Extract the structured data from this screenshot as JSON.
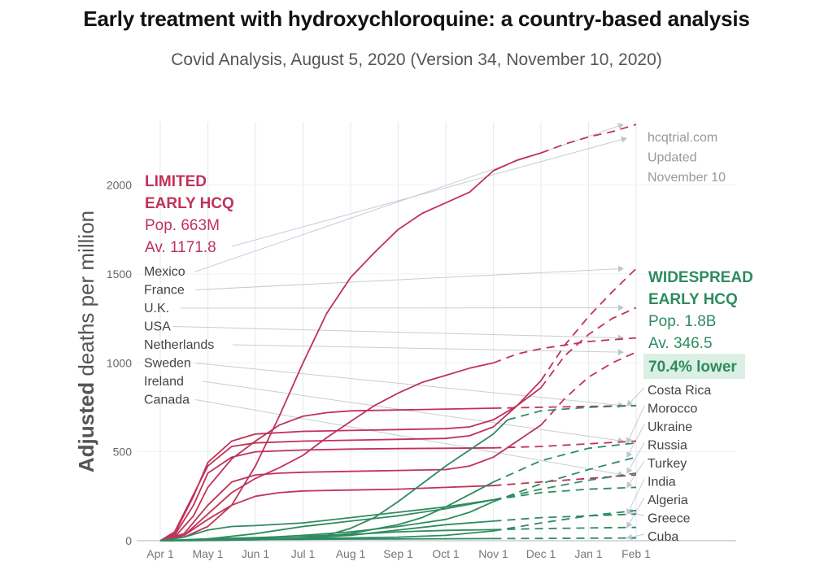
{
  "title": "Early treatment with hydroxychloroquine: a country-based analysis",
  "subtitle": "Covid Analysis, August 5, 2020 (Version 34, November 10, 2020)",
  "chart_data": {
    "type": "line",
    "ylabel_bold": "Adjusted",
    "ylabel_rest": " deaths per million",
    "xlabel": "",
    "x_ticks": [
      "Apr 1",
      "May 1",
      "Jun 1",
      "Jul 1",
      "Aug 1",
      "Sep 1",
      "Oct 1",
      "Nov 1",
      "Dec 1",
      "Jan 1",
      "Feb 1"
    ],
    "y_ticks": [
      0,
      500,
      1000,
      1500,
      2000
    ],
    "ylim": [
      0,
      2400
    ],
    "grid": true,
    "source_note": [
      "hcqtrial.com",
      "Updated",
      "November 10"
    ],
    "colors": {
      "limited": "#c0325a",
      "widespread": "#2e8b60",
      "annotation_line": "#c7ccd6"
    },
    "groups": {
      "limited": {
        "lines": [
          "LIMITED",
          "EARLY HCQ",
          "Pop. 663M",
          "Av. 1171.8"
        ]
      },
      "widespread": {
        "lines": [
          "WIDESPREAD",
          "EARLY HCQ",
          "Pop. 1.8B",
          "Av. 346.5"
        ],
        "highlight": "70.4% lower"
      }
    },
    "limited_countries": [
      "Mexico",
      "France",
      "U.K.",
      "USA",
      "Netherlands",
      "Sweden",
      "Ireland",
      "Canada"
    ],
    "widespread_countries": [
      "Costa Rica",
      "Morocco",
      "Ukraine",
      "Russia",
      "Turkey",
      "India",
      "Algeria",
      "Greece",
      "Cuba"
    ],
    "series": [
      {
        "name": "Mexico",
        "group": "limited",
        "points": [
          [
            0,
            0
          ],
          [
            0.5,
            20
          ],
          [
            1,
            80
          ],
          [
            1.5,
            200
          ],
          [
            2,
            420
          ],
          [
            2.5,
            700
          ],
          [
            3,
            1000
          ],
          [
            3.5,
            1280
          ],
          [
            4,
            1480
          ],
          [
            4.5,
            1620
          ],
          [
            5,
            1750
          ],
          [
            5.5,
            1840
          ],
          [
            6,
            1900
          ],
          [
            6.5,
            1960
          ],
          [
            7,
            2080
          ],
          [
            7.5,
            2140
          ],
          [
            8,
            2180
          ]
        ],
        "projection": [
          [
            8,
            2180
          ],
          [
            8.5,
            2230
          ],
          [
            9,
            2270
          ],
          [
            9.5,
            2300
          ],
          [
            10,
            2340
          ]
        ]
      },
      {
        "name": "France",
        "group": "limited",
        "points": [
          [
            0,
            0
          ],
          [
            0.3,
            50
          ],
          [
            0.7,
            260
          ],
          [
            1,
            420
          ],
          [
            1.5,
            530
          ],
          [
            2,
            550
          ],
          [
            3,
            560
          ],
          [
            4,
            565
          ],
          [
            5,
            570
          ],
          [
            6,
            575
          ],
          [
            6.5,
            590
          ],
          [
            7,
            640
          ],
          [
            7.5,
            760
          ],
          [
            8,
            900
          ]
        ],
        "projection": [
          [
            8,
            900
          ],
          [
            8.5,
            1100
          ],
          [
            9,
            1260
          ],
          [
            9.5,
            1400
          ],
          [
            10,
            1530
          ]
        ]
      },
      {
        "name": "U.K.",
        "group": "limited",
        "points": [
          [
            0,
            0
          ],
          [
            0.3,
            40
          ],
          [
            0.7,
            250
          ],
          [
            1,
            440
          ],
          [
            1.5,
            560
          ],
          [
            2,
            600
          ],
          [
            3,
            615
          ],
          [
            4,
            620
          ],
          [
            5,
            625
          ],
          [
            6,
            630
          ],
          [
            6.5,
            640
          ],
          [
            7,
            680
          ],
          [
            7.5,
            760
          ],
          [
            8,
            860
          ]
        ],
        "projection": [
          [
            8,
            860
          ],
          [
            8.5,
            1040
          ],
          [
            9,
            1160
          ],
          [
            9.5,
            1250
          ],
          [
            10,
            1310
          ]
        ]
      },
      {
        "name": "USA",
        "group": "limited",
        "points": [
          [
            0,
            0
          ],
          [
            0.5,
            30
          ],
          [
            1,
            150
          ],
          [
            1.5,
            270
          ],
          [
            2,
            350
          ],
          [
            2.5,
            410
          ],
          [
            3,
            480
          ],
          [
            3.5,
            580
          ],
          [
            4,
            670
          ],
          [
            4.5,
            760
          ],
          [
            5,
            830
          ],
          [
            5.5,
            890
          ],
          [
            6,
            930
          ],
          [
            6.5,
            970
          ],
          [
            7,
            1000
          ]
        ],
        "projection": [
          [
            7,
            1000
          ],
          [
            7.5,
            1050
          ],
          [
            8,
            1080
          ],
          [
            8.5,
            1100
          ],
          [
            9,
            1120
          ],
          [
            9.5,
            1130
          ],
          [
            10,
            1140
          ]
        ]
      },
      {
        "name": "Netherlands",
        "group": "limited",
        "points": [
          [
            0,
            0
          ],
          [
            0.5,
            40
          ],
          [
            1,
            200
          ],
          [
            1.5,
            330
          ],
          [
            2,
            370
          ],
          [
            2.5,
            380
          ],
          [
            3,
            385
          ],
          [
            4,
            390
          ],
          [
            5,
            395
          ],
          [
            6,
            400
          ],
          [
            6.5,
            420
          ],
          [
            7,
            470
          ],
          [
            7.5,
            560
          ],
          [
            8,
            650
          ]
        ],
        "projection": [
          [
            8,
            650
          ],
          [
            8.5,
            800
          ],
          [
            9,
            920
          ],
          [
            9.5,
            1000
          ],
          [
            10,
            1060
          ]
        ]
      },
      {
        "name": "Sweden",
        "group": "limited",
        "points": [
          [
            0,
            0
          ],
          [
            0.3,
            20
          ],
          [
            0.7,
            140
          ],
          [
            1,
            300
          ],
          [
            1.5,
            460
          ],
          [
            2,
            560
          ],
          [
            2.5,
            650
          ],
          [
            3,
            700
          ],
          [
            3.5,
            720
          ],
          [
            4,
            730
          ],
          [
            5,
            735
          ],
          [
            6,
            740
          ],
          [
            7,
            745
          ]
        ],
        "projection": [
          [
            7,
            745
          ],
          [
            8,
            750
          ],
          [
            9,
            755
          ],
          [
            10,
            760
          ]
        ]
      },
      {
        "name": "Ireland",
        "group": "limited",
        "points": [
          [
            0,
            0
          ],
          [
            0.3,
            30
          ],
          [
            0.7,
            200
          ],
          [
            1,
            380
          ],
          [
            1.5,
            470
          ],
          [
            2,
            500
          ],
          [
            3,
            510
          ],
          [
            4,
            515
          ],
          [
            5,
            518
          ],
          [
            6,
            520
          ],
          [
            7,
            522
          ]
        ],
        "projection": [
          [
            7,
            522
          ],
          [
            8,
            530
          ],
          [
            9,
            545
          ],
          [
            10,
            560
          ]
        ]
      },
      {
        "name": "Canada",
        "group": "limited",
        "points": [
          [
            0,
            0
          ],
          [
            0.5,
            30
          ],
          [
            1,
            120
          ],
          [
            1.5,
            200
          ],
          [
            2,
            250
          ],
          [
            2.5,
            270
          ],
          [
            3,
            280
          ],
          [
            4,
            285
          ],
          [
            5,
            290
          ],
          [
            6,
            300
          ],
          [
            7,
            310
          ]
        ],
        "projection": [
          [
            7,
            310
          ],
          [
            8,
            330
          ],
          [
            9,
            350
          ],
          [
            10,
            370
          ]
        ]
      },
      {
        "name": "Costa Rica",
        "group": "widespread",
        "points": [
          [
            0,
            0
          ],
          [
            1,
            2
          ],
          [
            2,
            5
          ],
          [
            3,
            15
          ],
          [
            3.5,
            30
          ],
          [
            4,
            70
          ],
          [
            4.5,
            130
          ],
          [
            5,
            220
          ],
          [
            5.5,
            320
          ],
          [
            6,
            420
          ],
          [
            6.5,
            510
          ],
          [
            7,
            600
          ],
          [
            7.3,
            680
          ]
        ],
        "projection": [
          [
            7.3,
            680
          ],
          [
            8,
            730
          ],
          [
            9,
            750
          ],
          [
            10,
            760
          ]
        ]
      },
      {
        "name": "Morocco",
        "group": "widespread",
        "points": [
          [
            0,
            0
          ],
          [
            1,
            5
          ],
          [
            2,
            8
          ],
          [
            3,
            15
          ],
          [
            4,
            40
          ],
          [
            5,
            90
          ],
          [
            5.5,
            130
          ],
          [
            6,
            190
          ],
          [
            6.5,
            260
          ],
          [
            7,
            330
          ]
        ],
        "projection": [
          [
            7,
            330
          ],
          [
            8,
            450
          ],
          [
            9,
            520
          ],
          [
            10,
            550
          ]
        ]
      },
      {
        "name": "Ukraine",
        "group": "widespread",
        "points": [
          [
            0,
            0
          ],
          [
            1,
            5
          ],
          [
            2,
            15
          ],
          [
            3,
            30
          ],
          [
            4,
            50
          ],
          [
            5,
            80
          ],
          [
            6,
            120
          ],
          [
            6.5,
            160
          ],
          [
            7,
            220
          ]
        ],
        "projection": [
          [
            7,
            220
          ],
          [
            8,
            320
          ],
          [
            9,
            400
          ],
          [
            10,
            470
          ]
        ]
      },
      {
        "name": "Russia",
        "group": "widespread",
        "points": [
          [
            0,
            0
          ],
          [
            1,
            10
          ],
          [
            2,
            40
          ],
          [
            3,
            80
          ],
          [
            4,
            110
          ],
          [
            5,
            140
          ],
          [
            6,
            180
          ],
          [
            7,
            230
          ]
        ],
        "projection": [
          [
            7,
            230
          ],
          [
            8,
            290
          ],
          [
            9,
            340
          ],
          [
            10,
            380
          ]
        ]
      },
      {
        "name": "Turkey",
        "group": "widespread",
        "points": [
          [
            0,
            0
          ],
          [
            0.5,
            20
          ],
          [
            1,
            60
          ],
          [
            1.5,
            80
          ],
          [
            2,
            85
          ],
          [
            3,
            100
          ],
          [
            4,
            130
          ],
          [
            5,
            160
          ],
          [
            6,
            190
          ],
          [
            7,
            230
          ]
        ],
        "projection": [
          [
            7,
            230
          ],
          [
            8,
            270
          ],
          [
            9,
            290
          ],
          [
            10,
            300
          ]
        ]
      },
      {
        "name": "India",
        "group": "widespread",
        "points": [
          [
            0,
            0
          ],
          [
            1,
            2
          ],
          [
            2,
            6
          ],
          [
            3,
            15
          ],
          [
            4,
            30
          ],
          [
            5,
            60
          ],
          [
            6,
            90
          ],
          [
            7,
            110
          ]
        ],
        "projection": [
          [
            7,
            110
          ],
          [
            8,
            130
          ],
          [
            9,
            140
          ],
          [
            10,
            150
          ]
        ]
      },
      {
        "name": "Algeria",
        "group": "widespread",
        "points": [
          [
            0,
            0
          ],
          [
            1,
            10
          ],
          [
            2,
            18
          ],
          [
            3,
            25
          ],
          [
            4,
            35
          ],
          [
            5,
            50
          ],
          [
            6,
            58
          ],
          [
            7,
            62
          ]
        ],
        "projection": [
          [
            7,
            62
          ],
          [
            8,
            68
          ],
          [
            9,
            72
          ],
          [
            10,
            75
          ]
        ]
      },
      {
        "name": "Greece",
        "group": "widespread",
        "points": [
          [
            0,
            0
          ],
          [
            1,
            8
          ],
          [
            2,
            12
          ],
          [
            3,
            14
          ],
          [
            4,
            16
          ],
          [
            5,
            20
          ],
          [
            6,
            30
          ],
          [
            7,
            55
          ]
        ],
        "projection": [
          [
            7,
            55
          ],
          [
            8,
            100
          ],
          [
            9,
            140
          ],
          [
            10,
            170
          ]
        ]
      },
      {
        "name": "Cuba",
        "group": "widespread",
        "points": [
          [
            0,
            0
          ],
          [
            1,
            5
          ],
          [
            2,
            7
          ],
          [
            3,
            8
          ],
          [
            4,
            9
          ],
          [
            5,
            10
          ],
          [
            6,
            11
          ],
          [
            7,
            12
          ]
        ],
        "projection": [
          [
            7,
            12
          ],
          [
            8,
            13
          ],
          [
            9,
            14
          ],
          [
            10,
            15
          ]
        ]
      }
    ]
  }
}
